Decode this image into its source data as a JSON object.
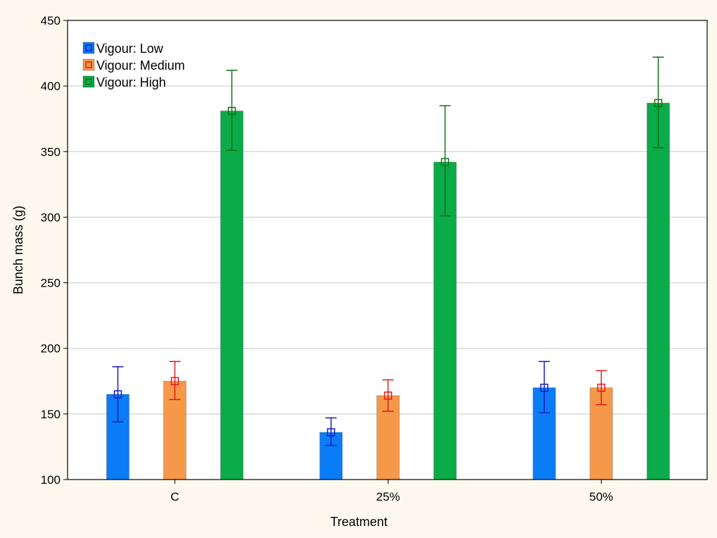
{
  "chart_data": {
    "type": "bar",
    "title": "",
    "xlabel": "Treatment",
    "ylabel": "Bunch mass (g)",
    "categories": [
      "C",
      "25%",
      "50%"
    ],
    "ylim": [
      100,
      450
    ],
    "yticks": [
      100,
      150,
      200,
      250,
      300,
      350,
      400,
      450
    ],
    "grid": true,
    "legend_position": "top-left",
    "series": [
      {
        "name": "Vigour: Low",
        "color": "#0a7cf5",
        "error_color": "#1717c8",
        "values": [
          165,
          136,
          170
        ],
        "error_low": [
          144,
          126,
          151
        ],
        "error_high": [
          186,
          147,
          190
        ]
      },
      {
        "name": "Vigour: Medium",
        "color": "#f5984a",
        "error_color": "#e31a1a",
        "values": [
          175,
          164,
          170
        ],
        "error_low": [
          161,
          152,
          157
        ],
        "error_high": [
          190,
          176,
          183
        ]
      },
      {
        "name": "Vigour: High",
        "color": "#0aab48",
        "error_color": "#127212",
        "values": [
          381,
          342,
          387
        ],
        "error_low": [
          351,
          301,
          353
        ],
        "error_high": [
          412,
          385,
          422
        ]
      }
    ]
  }
}
